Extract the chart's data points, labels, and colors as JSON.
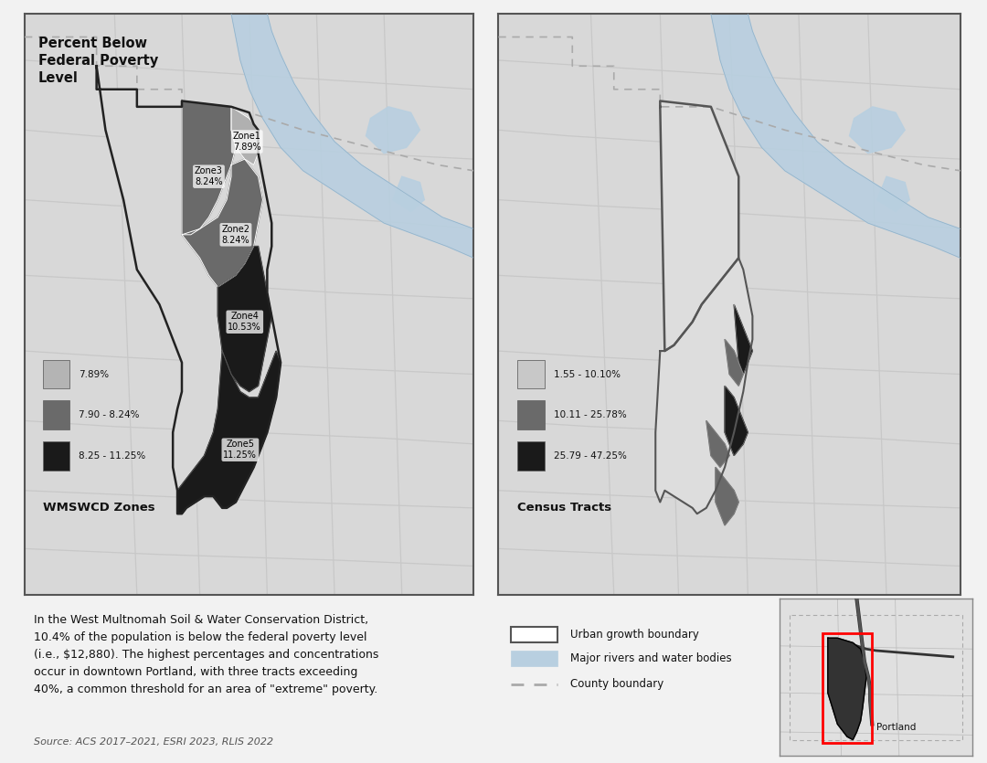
{
  "title": "Percent Below\nFederal Poverty\nLevel",
  "fig_bg": "#f2f2f2",
  "map_bg": "#d8d8d8",
  "water_color": "#b8cfe0",
  "road_color": "#e8e8e8",
  "county_dash_color": "#aaaaaa",
  "zone1_color": "#b0b0b0",
  "zone23_color": "#6a6a6a",
  "zone45_color": "#1a1a1a",
  "zone_label_bg": "white",
  "zone_label_color": "#111111",
  "left_legend": [
    {
      "label": "7.89%",
      "color": "#b4b4b4"
    },
    {
      "label": "7.90 - 8.24%",
      "color": "#6a6a6a"
    },
    {
      "label": "8.25 - 11.25%",
      "color": "#1a1a1a"
    }
  ],
  "left_map_title": "WMSWCD Zones",
  "right_legend": [
    {
      "label": "1.55 - 10.10%",
      "color": "#c8c8c8"
    },
    {
      "label": "10.11 - 25.78%",
      "color": "#6a6a6a"
    },
    {
      "label": "25.79 - 47.25%",
      "color": "#1a1a1a"
    }
  ],
  "right_map_title": "Census Tracts",
  "body_text": "In the West Multnomah Soil & Water Conservation District,\n10.4% of the population is below the federal poverty level\n(i.e., $12,880). The highest percentages and concentrations\noccur in downtown Portland, with three tracts exceeding\n40%, a common threshold for an area of \"extreme\" poverty.",
  "source_text": "Source: ACS 2017–2021, ESRI 2023, RLIS 2022",
  "bottom_legend": [
    {
      "label": "Urban growth boundary"
    },
    {
      "label": "Major rivers and water bodies"
    },
    {
      "label": "County boundary"
    }
  ],
  "portland_label": "Portland",
  "district_outline_color": "#222222",
  "ugb_color": "#dddddd",
  "tract_light": "#c4c4c4",
  "tract_mid": "#6a6a6a",
  "tract_dark": "#1a1a1a"
}
